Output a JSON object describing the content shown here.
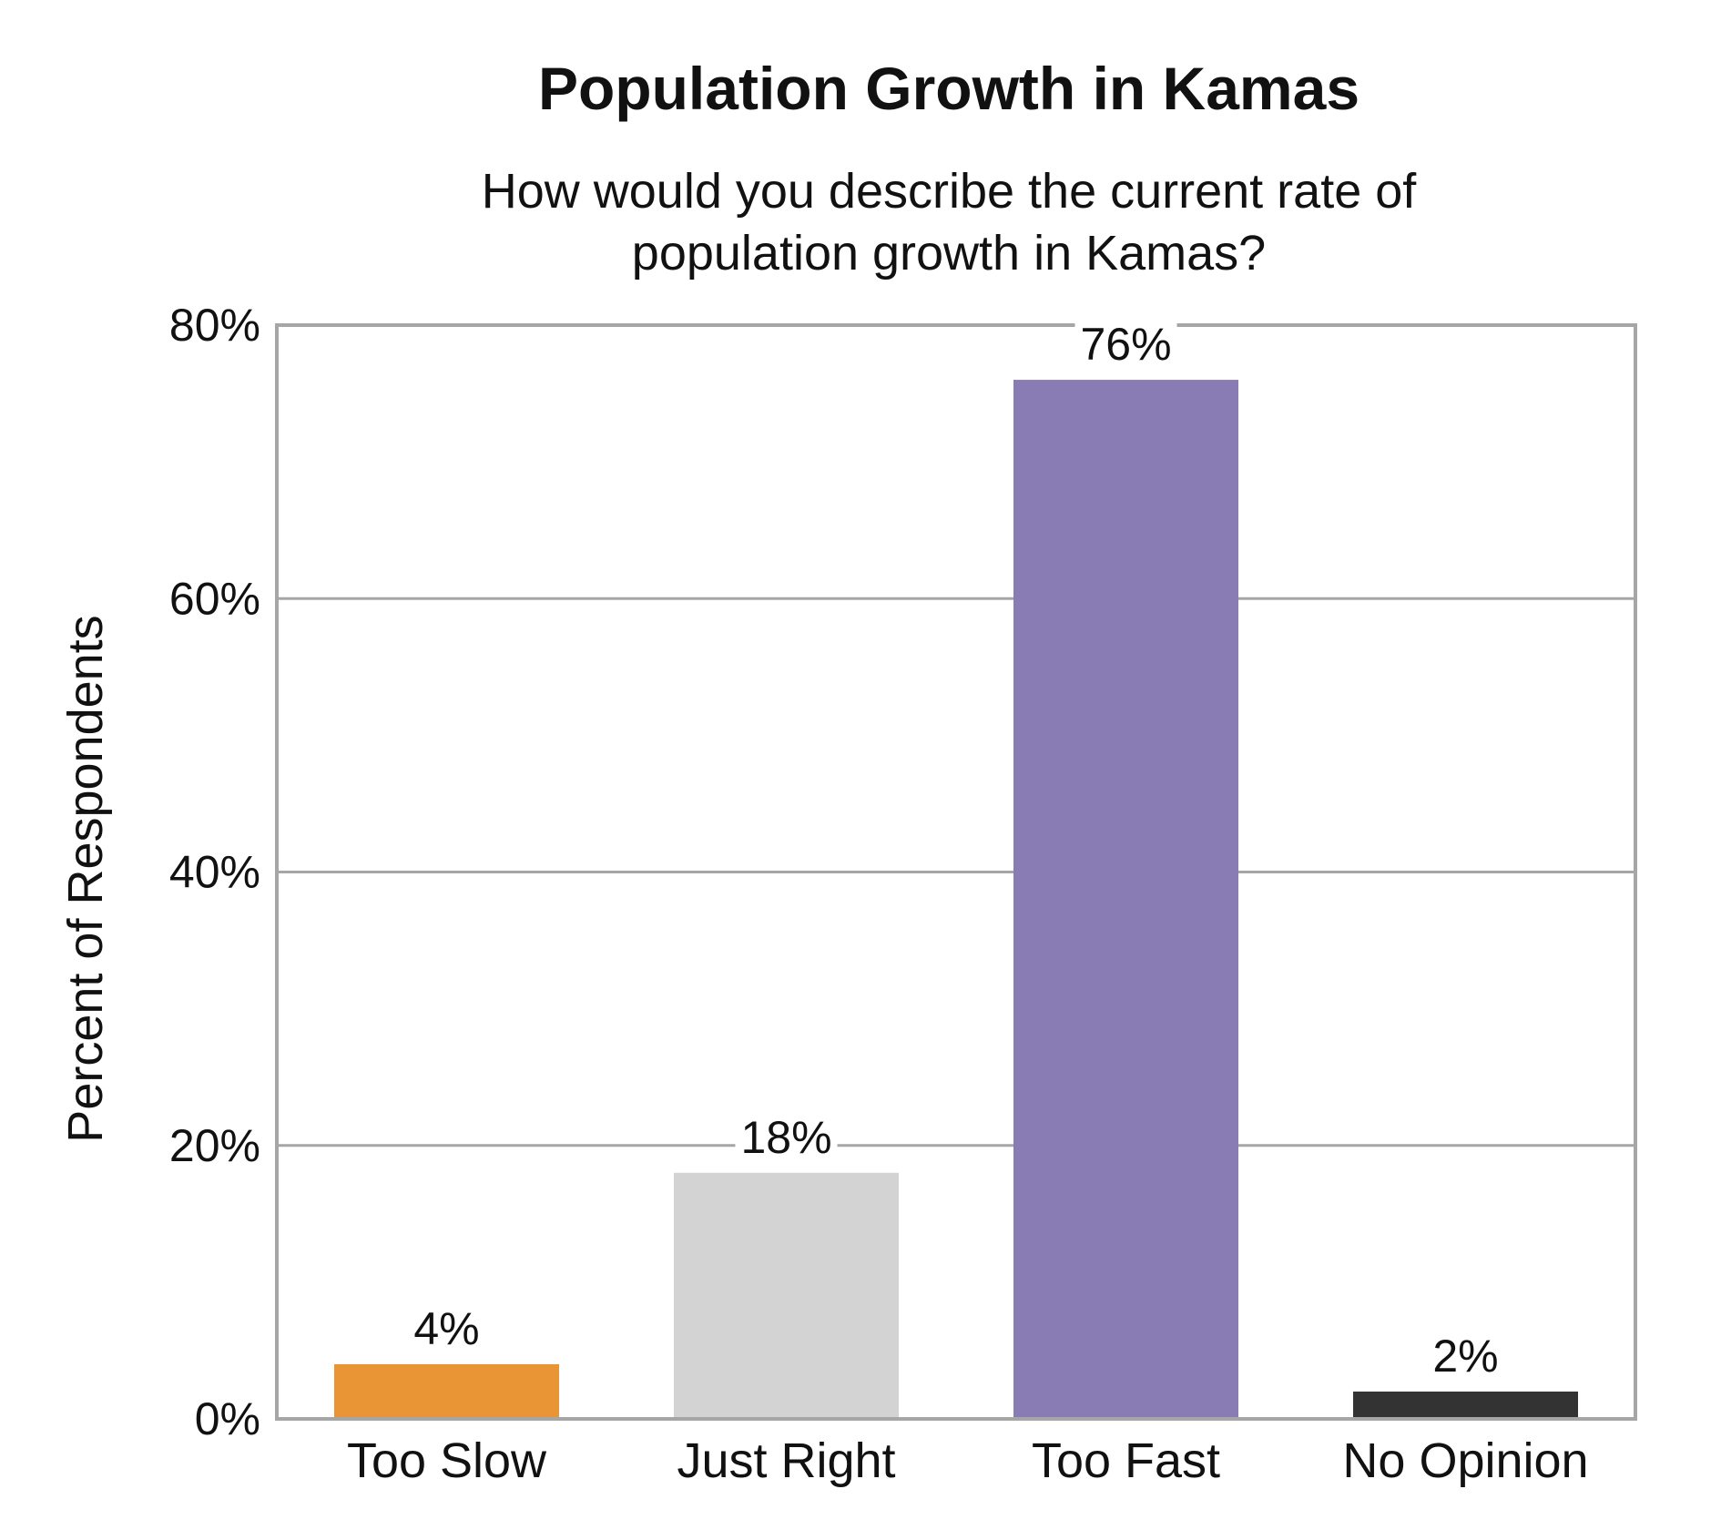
{
  "chart_data": {
    "type": "bar",
    "title": "Population Growth in Kamas",
    "subtitle_lines": [
      "How would you describe the current rate of",
      "population growth in Kamas?"
    ],
    "xlabel": "",
    "ylabel": "Percent of Respondents",
    "ylim": [
      0,
      80
    ],
    "y_ticks": [
      0,
      20,
      40,
      60,
      80
    ],
    "y_tick_labels": [
      "0%",
      "20%",
      "40%",
      "60%",
      "80%"
    ],
    "categories": [
      "Too Slow",
      "Just Right",
      "Too Fast",
      "No Opinion"
    ],
    "values": [
      4,
      18,
      76,
      2
    ],
    "value_labels": [
      "4%",
      "18%",
      "76%",
      "2%"
    ],
    "bar_colors": [
      "#E99535",
      "#D3D3D3",
      "#897CB5",
      "#333333"
    ],
    "grid": true,
    "legend": "none"
  },
  "colors": {
    "frame": "#A6A6A6",
    "grid": "#A6A6A6",
    "text": "#111111"
  }
}
